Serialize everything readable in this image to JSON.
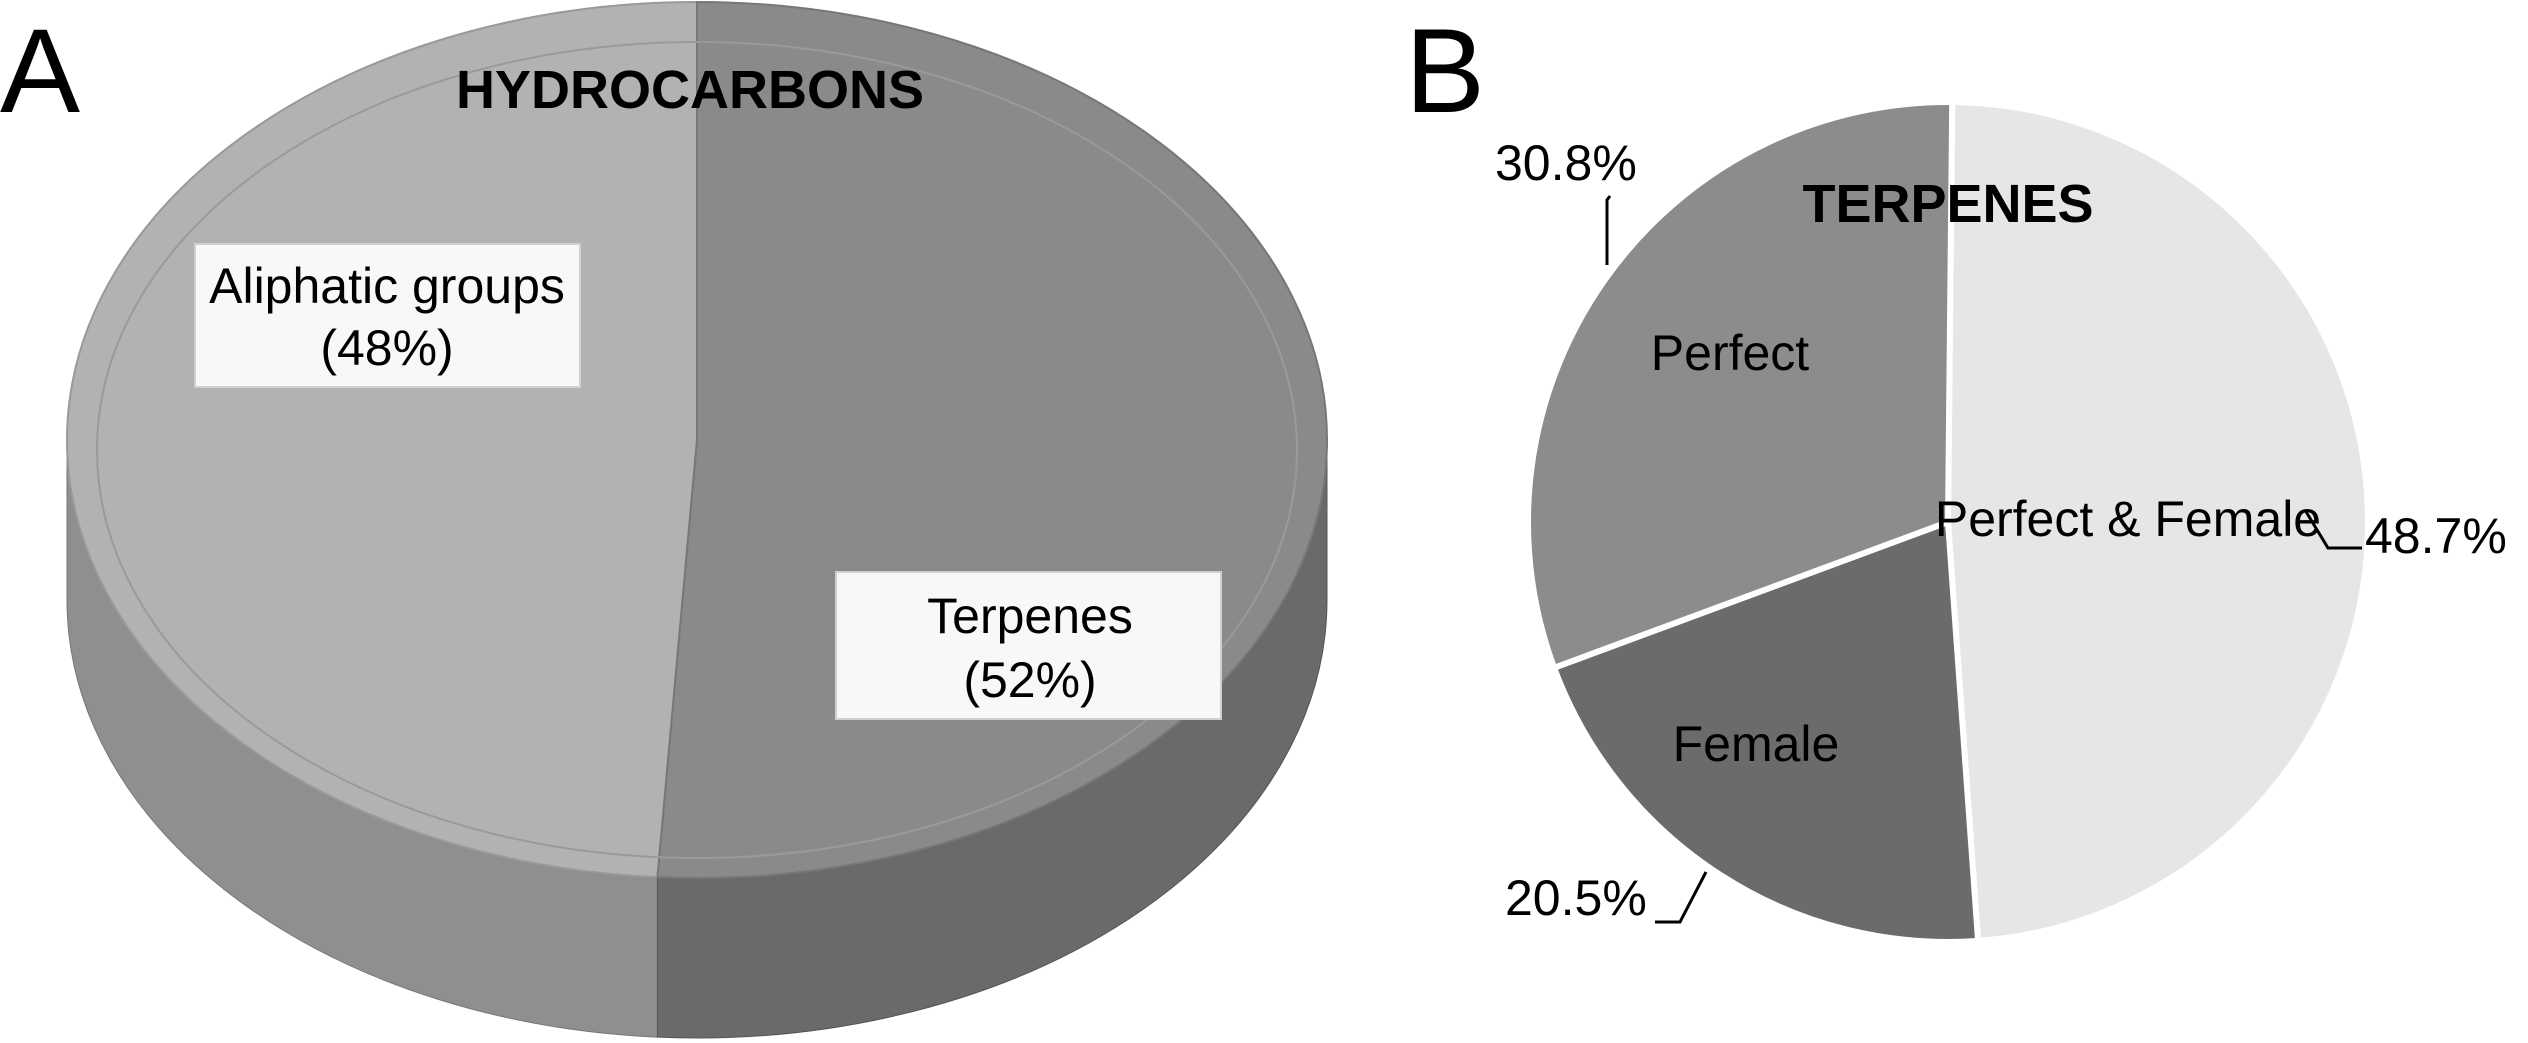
{
  "chart_data": [
    {
      "panel": "A",
      "type": "pie",
      "title": "HYDROCARBONS",
      "slices": [
        {
          "label": "Aliphatic groups",
          "pct_text": "(48%)",
          "value": 48,
          "color": "#b2b2b2",
          "side": "#8f8f8f"
        },
        {
          "label": "Terpenes",
          "pct_text": "(52%)",
          "value": 52,
          "color": "#8a8a8a",
          "side": "#6a6a6a"
        }
      ]
    },
    {
      "panel": "B",
      "type": "pie",
      "title": "TERPENES",
      "slices": [
        {
          "label": "Perfect & Female",
          "pct_text": "48.7%",
          "value": 48.7,
          "color": "#e6e6e6"
        },
        {
          "label": "Female",
          "pct_text": "20.5%",
          "value": 20.5,
          "color": "#6b6b6b"
        },
        {
          "label": "Perfect",
          "pct_text": "30.8%",
          "value": 30.8,
          "color": "#8c8c8c"
        }
      ]
    }
  ]
}
